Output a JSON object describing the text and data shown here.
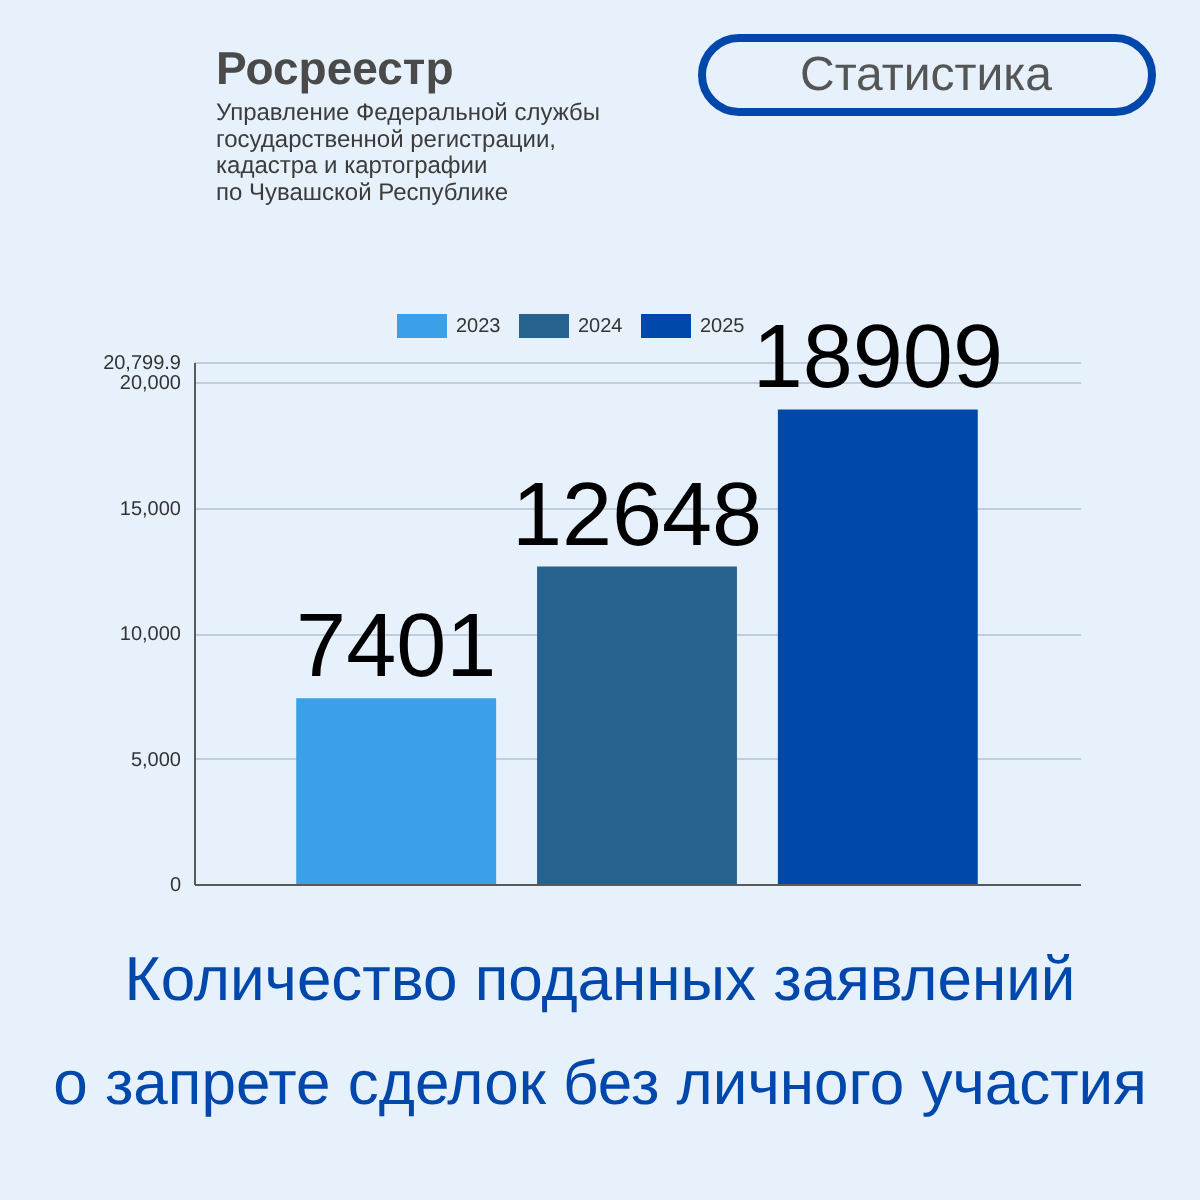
{
  "chart_data": {
    "type": "bar",
    "title": "Количество поданных заявлений\nо запрете сделок без личного участия",
    "annotations": [
      "Росреестр",
      "Управление Федеральной службы\nгосударственной регистрации,\nкадастра и картографии\nпо Чувашской Республике",
      "Статистика"
    ],
    "categories": [
      null
    ],
    "series": [
      {
        "name": "2023",
        "color": "#3aa0e8",
        "values": [
          7401
        ]
      },
      {
        "name": "2024",
        "color": "#27628e",
        "values": [
          12648
        ]
      },
      {
        "name": "2025",
        "color": "#0049aa",
        "values": [
          18909
        ]
      }
    ],
    "ylim": [
      0,
      20799.9
    ],
    "yticks": [
      0,
      {
        "value": 5000,
        "label": "5,000"
      },
      {
        "value": 10000,
        "label": "10,000"
      },
      {
        "value": 15000,
        "label": "15,000"
      },
      {
        "value": 20000,
        "label": "20,000"
      },
      {
        "value": 20799.9,
        "label": "20,799.9"
      }
    ],
    "grid": "y",
    "legend": "top",
    "data_labels": true,
    "tick_labels": "y"
  }
}
